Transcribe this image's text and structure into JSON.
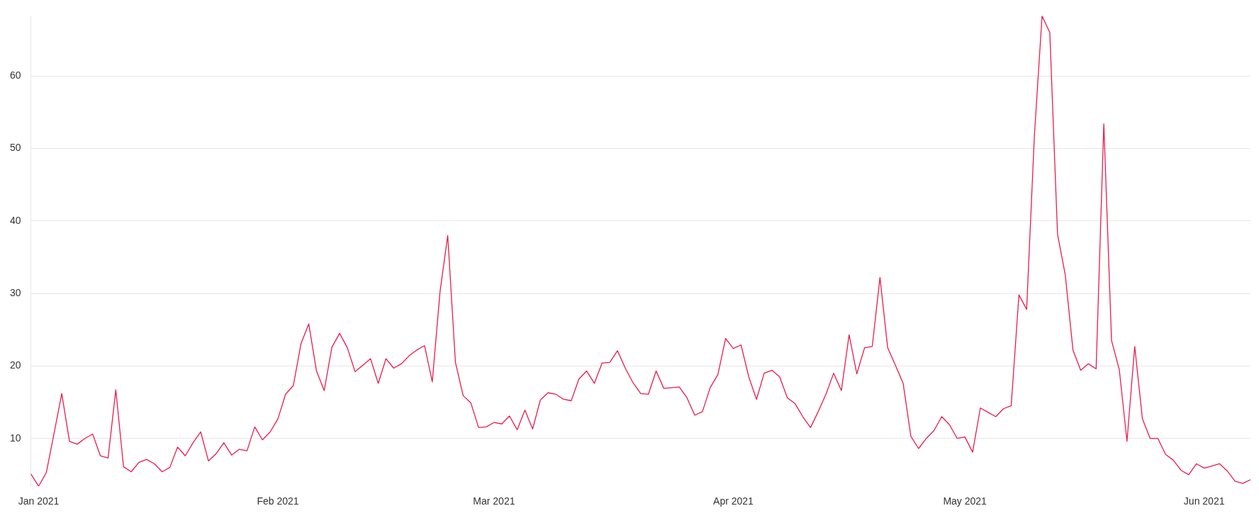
{
  "chart_data": {
    "type": "line",
    "x": [
      "2020-12-31",
      "2021-01-01",
      "2021-01-02",
      "2021-01-03",
      "2021-01-04",
      "2021-01-05",
      "2021-01-06",
      "2021-01-07",
      "2021-01-08",
      "2021-01-09",
      "2021-01-10",
      "2021-01-11",
      "2021-01-12",
      "2021-01-13",
      "2021-01-14",
      "2021-01-15",
      "2021-01-16",
      "2021-01-17",
      "2021-01-18",
      "2021-01-19",
      "2021-01-20",
      "2021-01-21",
      "2021-01-22",
      "2021-01-23",
      "2021-01-24",
      "2021-01-25",
      "2021-01-26",
      "2021-01-27",
      "2021-01-28",
      "2021-01-29",
      "2021-01-30",
      "2021-01-31",
      "2021-02-01",
      "2021-02-02",
      "2021-02-03",
      "2021-02-04",
      "2021-02-05",
      "2021-02-06",
      "2021-02-07",
      "2021-02-08",
      "2021-02-09",
      "2021-02-10",
      "2021-02-11",
      "2021-02-12",
      "2021-02-13",
      "2021-02-14",
      "2021-02-15",
      "2021-02-16",
      "2021-02-17",
      "2021-02-18",
      "2021-02-19",
      "2021-02-20",
      "2021-02-21",
      "2021-02-22",
      "2021-02-23",
      "2021-02-24",
      "2021-02-25",
      "2021-02-26",
      "2021-02-27",
      "2021-02-28",
      "2021-03-01",
      "2021-03-02",
      "2021-03-03",
      "2021-03-04",
      "2021-03-05",
      "2021-03-06",
      "2021-03-07",
      "2021-03-08",
      "2021-03-09",
      "2021-03-10",
      "2021-03-11",
      "2021-03-12",
      "2021-03-13",
      "2021-03-14",
      "2021-03-15",
      "2021-03-16",
      "2021-03-17",
      "2021-03-18",
      "2021-03-19",
      "2021-03-20",
      "2021-03-21",
      "2021-03-22",
      "2021-03-23",
      "2021-03-24",
      "2021-03-25",
      "2021-03-26",
      "2021-03-27",
      "2021-03-28",
      "2021-03-29",
      "2021-03-30",
      "2021-03-31",
      "2021-04-01",
      "2021-04-02",
      "2021-04-03",
      "2021-04-04",
      "2021-04-05",
      "2021-04-06",
      "2021-04-07",
      "2021-04-08",
      "2021-04-09",
      "2021-04-10",
      "2021-04-11",
      "2021-04-12",
      "2021-04-13",
      "2021-04-14",
      "2021-04-15",
      "2021-04-16",
      "2021-04-17",
      "2021-04-18",
      "2021-04-19",
      "2021-04-20",
      "2021-04-21",
      "2021-04-22",
      "2021-04-23",
      "2021-04-24",
      "2021-04-25",
      "2021-04-26",
      "2021-04-27",
      "2021-04-28",
      "2021-04-29",
      "2021-04-30",
      "2021-05-01",
      "2021-05-02",
      "2021-05-03",
      "2021-05-04",
      "2021-05-05",
      "2021-05-06",
      "2021-05-07",
      "2021-05-08",
      "2021-05-09",
      "2021-05-10",
      "2021-05-11",
      "2021-05-12",
      "2021-05-13",
      "2021-05-14",
      "2021-05-15",
      "2021-05-16",
      "2021-05-17",
      "2021-05-18",
      "2021-05-19",
      "2021-05-20",
      "2021-05-21",
      "2021-05-22",
      "2021-05-23",
      "2021-05-24",
      "2021-05-25",
      "2021-05-26",
      "2021-05-27",
      "2021-05-28",
      "2021-05-29",
      "2021-05-30",
      "2021-05-31",
      "2021-06-01",
      "2021-06-02",
      "2021-06-03",
      "2021-06-04",
      "2021-06-05",
      "2021-06-06",
      "2021-06-07"
    ],
    "series": [
      {
        "color": "#ea1b4d",
        "values": [
          5.1,
          3.4,
          5.3,
          10.7,
          16.2,
          9.6,
          9.2,
          10.0,
          10.6,
          7.6,
          7.3,
          16.7,
          6.1,
          5.4,
          6.7,
          7.1,
          6.5,
          5.4,
          6.0,
          8.8,
          7.6,
          9.4,
          10.9,
          6.9,
          7.9,
          9.4,
          7.7,
          8.5,
          8.3,
          11.6,
          9.8,
          10.9,
          12.7,
          16.1,
          17.3,
          23.1,
          25.8,
          19.3,
          16.6,
          22.6,
          24.5,
          22.5,
          19.2,
          20.1,
          21.0,
          17.6,
          21.0,
          19.7,
          20.3,
          21.4,
          22.2,
          22.8,
          17.8,
          30.2,
          38.0,
          20.5,
          15.9,
          14.9,
          11.5,
          11.6,
          12.2,
          12.0,
          13.1,
          11.2,
          13.9,
          11.3,
          15.3,
          16.3,
          16.1,
          15.4,
          15.2,
          18.2,
          19.3,
          17.6,
          20.4,
          20.5,
          22.1,
          19.7,
          17.7,
          16.2,
          16.1,
          19.3,
          16.9,
          17.0,
          17.1,
          15.6,
          13.2,
          13.7,
          17.0,
          18.8,
          23.8,
          22.4,
          22.9,
          18.5,
          15.4,
          19.0,
          19.4,
          18.5,
          15.6,
          14.8,
          13.0,
          11.5,
          13.7,
          16.1,
          19.0,
          16.6,
          24.3,
          18.9,
          22.5,
          22.7,
          32.2,
          22.5,
          20.1,
          17.6,
          10.3,
          8.6,
          10.0,
          11.1,
          13.0,
          11.9,
          10.0,
          10.2,
          8.1,
          14.2,
          13.6,
          13.0,
          14.1,
          14.5,
          29.8,
          27.8,
          51.7,
          68.3,
          66.0,
          38.2,
          32.6,
          22.2,
          19.4,
          20.3,
          19.6,
          53.4,
          23.5,
          19.5,
          9.6,
          22.7,
          12.7,
          10.0,
          10.0,
          7.8,
          7.0,
          5.6,
          5.0,
          6.5,
          5.9,
          6.2,
          6.5,
          5.5,
          4.1,
          3.8,
          4.3
        ]
      }
    ],
    "xlim": [
      "2020-12-31",
      "2021-06-07"
    ],
    "xticks": [
      {
        "value": "2021-01-01",
        "label": "Jan 2021"
      },
      {
        "value": "2021-02-01",
        "label": "Feb 2021"
      },
      {
        "value": "2021-03-01",
        "label": "Mar 2021"
      },
      {
        "value": "2021-04-01",
        "label": "Apr 2021"
      },
      {
        "value": "2021-05-01",
        "label": "May 2021"
      },
      {
        "value": "2021-06-01",
        "label": "Jun 2021"
      }
    ],
    "ylim": [
      3.4,
      68.3
    ],
    "yticks": [
      10,
      20,
      30,
      40,
      50,
      60
    ],
    "grid": "y",
    "marker": "none",
    "line_style": "solid"
  }
}
